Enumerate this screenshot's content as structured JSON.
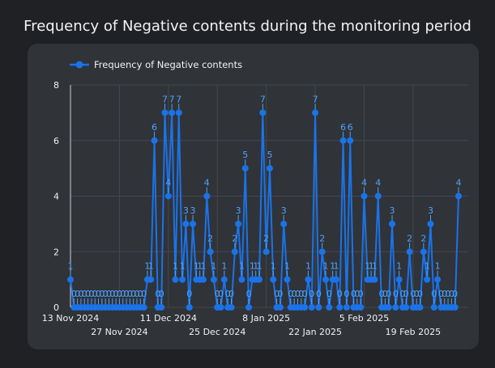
{
  "title": "Frequency of Negative contents during the monitoring period",
  "colors": {
    "series": "#1a73e8",
    "label": "#4da3ff",
    "grid": "#44484e",
    "panel": "#303338",
    "background": "#1f2124",
    "text": "#f1f3f4"
  },
  "chart_data": {
    "type": "line",
    "title": "Frequency of Negative contents during the monitoring period",
    "xlabel": "",
    "ylabel": "",
    "ylim": [
      0,
      8
    ],
    "yticks": [
      0,
      2,
      4,
      6,
      8
    ],
    "x_start": "13 Nov 2024",
    "x_ticks": [
      {
        "label": "13 Nov 2024",
        "index": 0,
        "row": 1
      },
      {
        "label": "27 Nov 2024",
        "index": 14,
        "row": 2
      },
      {
        "label": "11 Dec 2024",
        "index": 28,
        "row": 1
      },
      {
        "label": "25 Dec 2024",
        "index": 42,
        "row": 2
      },
      {
        "label": "8 Jan 2025",
        "index": 56,
        "row": 1
      },
      {
        "label": "22 Jan 2025",
        "index": 70,
        "row": 2
      },
      {
        "label": "5 Feb 2025",
        "index": 84,
        "row": 1
      },
      {
        "label": "19 Feb 2025",
        "index": 98,
        "row": 2
      }
    ],
    "grid": true,
    "legend_position": "top-left",
    "series": [
      {
        "name": "Frequency of Negative contents",
        "values": [
          1,
          0,
          0,
          0,
          0,
          0,
          0,
          0,
          0,
          0,
          0,
          0,
          0,
          0,
          0,
          0,
          0,
          0,
          0,
          0,
          0,
          0,
          1,
          1,
          6,
          0,
          0,
          7,
          4,
          7,
          1,
          7,
          1,
          3,
          0,
          3,
          1,
          1,
          1,
          4,
          2,
          1,
          0,
          0,
          1,
          0,
          0,
          2,
          3,
          1,
          5,
          0,
          1,
          1,
          1,
          7,
          2,
          5,
          1,
          0,
          0,
          3,
          1,
          0,
          0,
          0,
          0,
          0,
          1,
          0,
          7,
          0,
          2,
          1,
          0,
          1,
          1,
          0,
          6,
          0,
          6,
          0,
          0,
          0,
          4,
          1,
          1,
          1,
          4,
          0,
          0,
          0,
          3,
          0,
          1,
          0,
          0,
          2,
          0,
          0,
          0,
          2,
          1,
          3,
          0,
          1,
          0,
          0,
          0,
          0,
          0,
          4
        ]
      }
    ]
  }
}
